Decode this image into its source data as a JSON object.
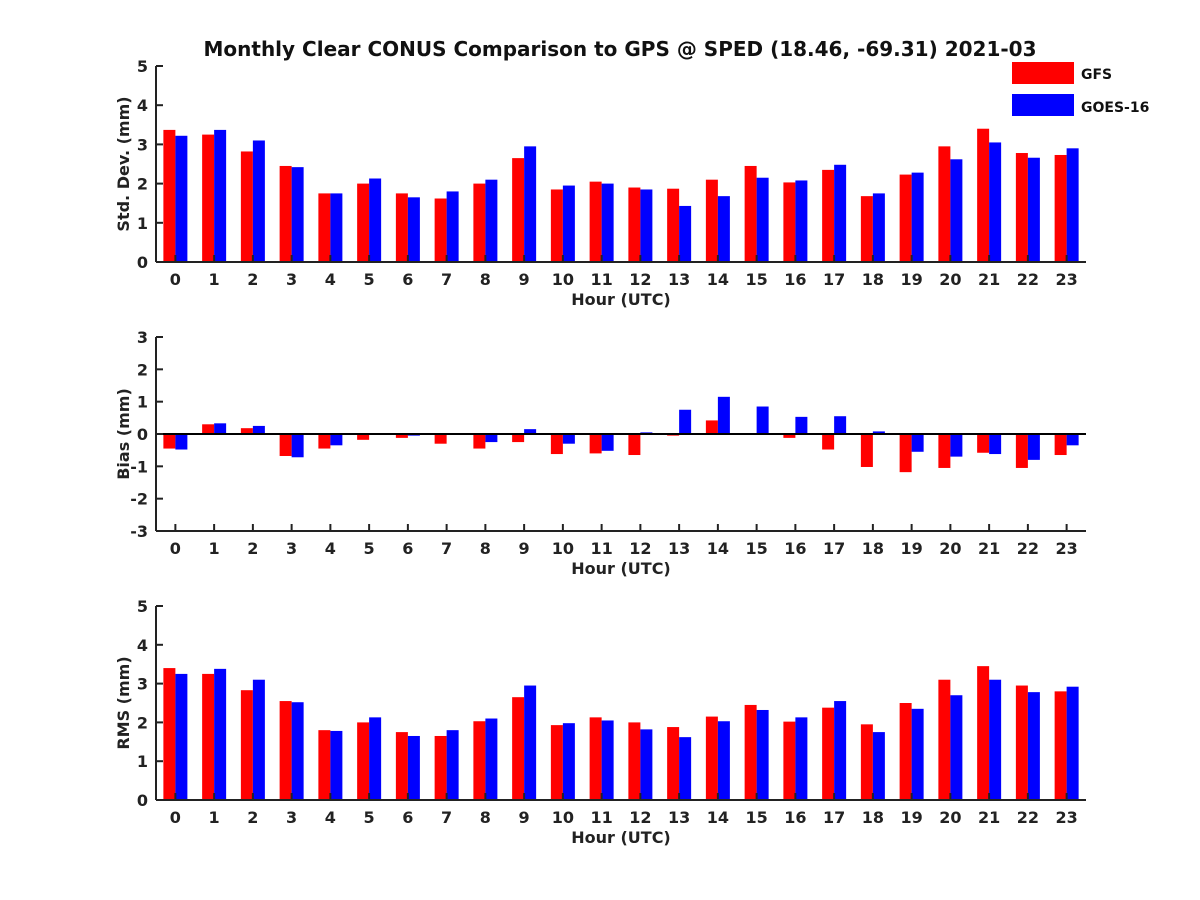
{
  "title": "Monthly Clear CONUS Comparison to GPS @ SPED (18.46, -69.31) 2021-03",
  "legend": {
    "placement": "top-right",
    "items": [
      {
        "name": "GFS",
        "color": "#ff0000"
      },
      {
        "name": "GOES-16",
        "color": "#0000ff"
      }
    ]
  },
  "chart_data": [
    {
      "type": "bar",
      "ylabel": "Std. Dev. (mm)",
      "xlabel": "Hour (UTC)",
      "ylim": [
        0,
        5
      ],
      "yticks": [
        0,
        1,
        2,
        3,
        4,
        5
      ],
      "categories": [
        "0",
        "1",
        "2",
        "3",
        "4",
        "5",
        "6",
        "7",
        "8",
        "9",
        "10",
        "11",
        "12",
        "13",
        "14",
        "15",
        "16",
        "17",
        "18",
        "19",
        "20",
        "21",
        "22",
        "23"
      ],
      "series": [
        {
          "name": "GFS",
          "color": "#ff0000",
          "values": [
            3.37,
            3.25,
            2.82,
            2.45,
            1.75,
            2.0,
            1.75,
            1.62,
            2.0,
            2.65,
            1.85,
            2.05,
            1.9,
            1.87,
            2.1,
            2.45,
            2.03,
            2.35,
            1.68,
            2.23,
            2.95,
            3.4,
            2.78,
            2.73
          ]
        },
        {
          "name": "GOES-16",
          "color": "#0000ff",
          "values": [
            3.22,
            3.37,
            3.1,
            2.42,
            1.75,
            2.13,
            1.65,
            1.8,
            2.1,
            2.95,
            1.95,
            2.0,
            1.85,
            1.43,
            1.68,
            2.15,
            2.08,
            2.48,
            1.75,
            2.28,
            2.62,
            3.05,
            2.66,
            2.9
          ]
        }
      ]
    },
    {
      "type": "bar",
      "ylabel": "Bias (mm)",
      "xlabel": "Hour (UTC)",
      "ylim": [
        -3,
        3
      ],
      "yticks": [
        -3,
        -2,
        -1,
        0,
        1,
        2,
        3
      ],
      "categories": [
        "0",
        "1",
        "2",
        "3",
        "4",
        "5",
        "6",
        "7",
        "8",
        "9",
        "10",
        "11",
        "12",
        "13",
        "14",
        "15",
        "16",
        "17",
        "18",
        "19",
        "20",
        "21",
        "22",
        "23"
      ],
      "series": [
        {
          "name": "GFS",
          "color": "#ff0000",
          "values": [
            -0.45,
            0.3,
            0.18,
            -0.68,
            -0.45,
            -0.18,
            -0.12,
            -0.3,
            -0.45,
            -0.25,
            -0.62,
            -0.6,
            -0.65,
            -0.05,
            0.42,
            0.0,
            -0.12,
            -0.48,
            -1.02,
            -1.18,
            -1.05,
            -0.58,
            -1.05,
            -0.65
          ]
        },
        {
          "name": "GOES-16",
          "color": "#0000ff",
          "values": [
            -0.48,
            0.33,
            0.25,
            -0.72,
            -0.35,
            0.02,
            -0.05,
            -0.02,
            -0.25,
            0.15,
            -0.3,
            -0.52,
            0.05,
            0.75,
            1.15,
            0.85,
            0.53,
            0.55,
            0.08,
            -0.55,
            -0.7,
            -0.62,
            -0.8,
            -0.35
          ]
        }
      ]
    },
    {
      "type": "bar",
      "ylabel": "RMS (mm)",
      "xlabel": "Hour (UTC)",
      "ylim": [
        0,
        5
      ],
      "yticks": [
        0,
        1,
        2,
        3,
        4,
        5
      ],
      "categories": [
        "0",
        "1",
        "2",
        "3",
        "4",
        "5",
        "6",
        "7",
        "8",
        "9",
        "10",
        "11",
        "12",
        "13",
        "14",
        "15",
        "16",
        "17",
        "18",
        "19",
        "20",
        "21",
        "22",
        "23"
      ],
      "series": [
        {
          "name": "GFS",
          "color": "#ff0000",
          "values": [
            3.4,
            3.25,
            2.83,
            2.55,
            1.8,
            2.0,
            1.75,
            1.65,
            2.03,
            2.65,
            1.93,
            2.13,
            2.0,
            1.88,
            2.15,
            2.45,
            2.02,
            2.38,
            1.95,
            2.5,
            3.1,
            3.45,
            2.95,
            2.8
          ]
        },
        {
          "name": "GOES-16",
          "color": "#0000ff",
          "values": [
            3.25,
            3.38,
            3.1,
            2.52,
            1.78,
            2.13,
            1.65,
            1.8,
            2.1,
            2.95,
            1.98,
            2.05,
            1.82,
            1.62,
            2.03,
            2.32,
            2.13,
            2.55,
            1.75,
            2.35,
            2.7,
            3.1,
            2.78,
            2.92
          ]
        }
      ]
    }
  ]
}
